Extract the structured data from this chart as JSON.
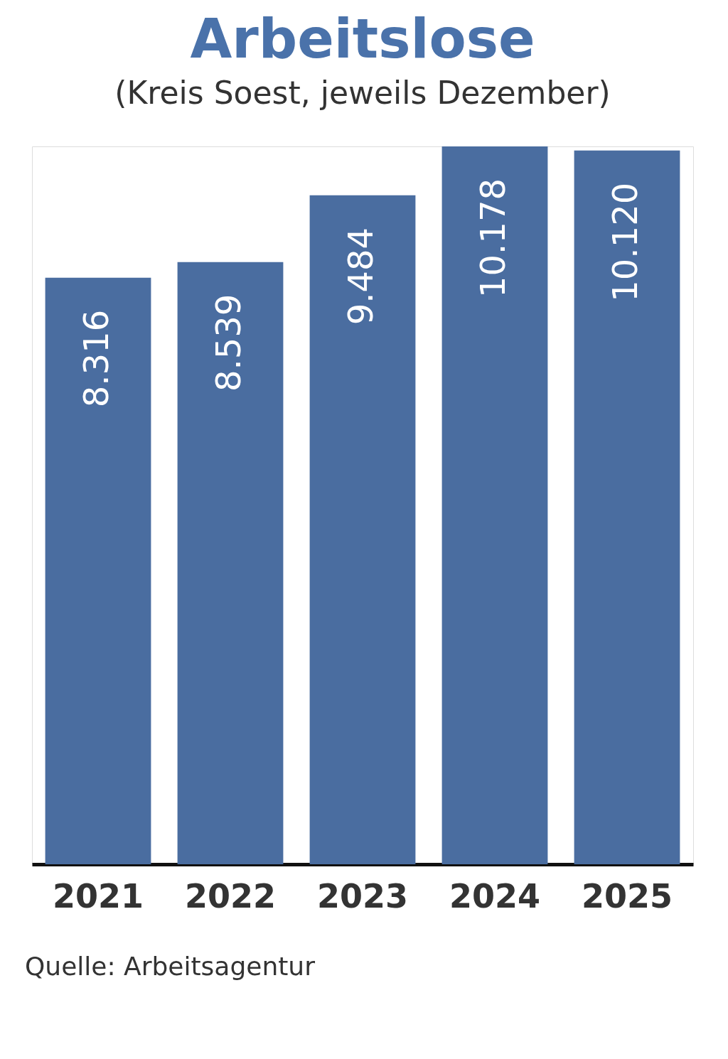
{
  "chart_data": {
    "type": "bar",
    "title": "Arbeitslose",
    "subtitle": "(Kreis Soest, jeweils Dezember)",
    "categories": [
      "2021",
      "2022",
      "2023",
      "2024",
      "2025"
    ],
    "values": [
      8316,
      8539,
      9484,
      10178,
      10120
    ],
    "value_labels": [
      "8.316",
      "8.539",
      "9.484",
      "10.178",
      "10.120"
    ],
    "color": "#4a6da0",
    "grid": false,
    "annotations": [
      "Quelle: Arbeitsagentur"
    ]
  }
}
